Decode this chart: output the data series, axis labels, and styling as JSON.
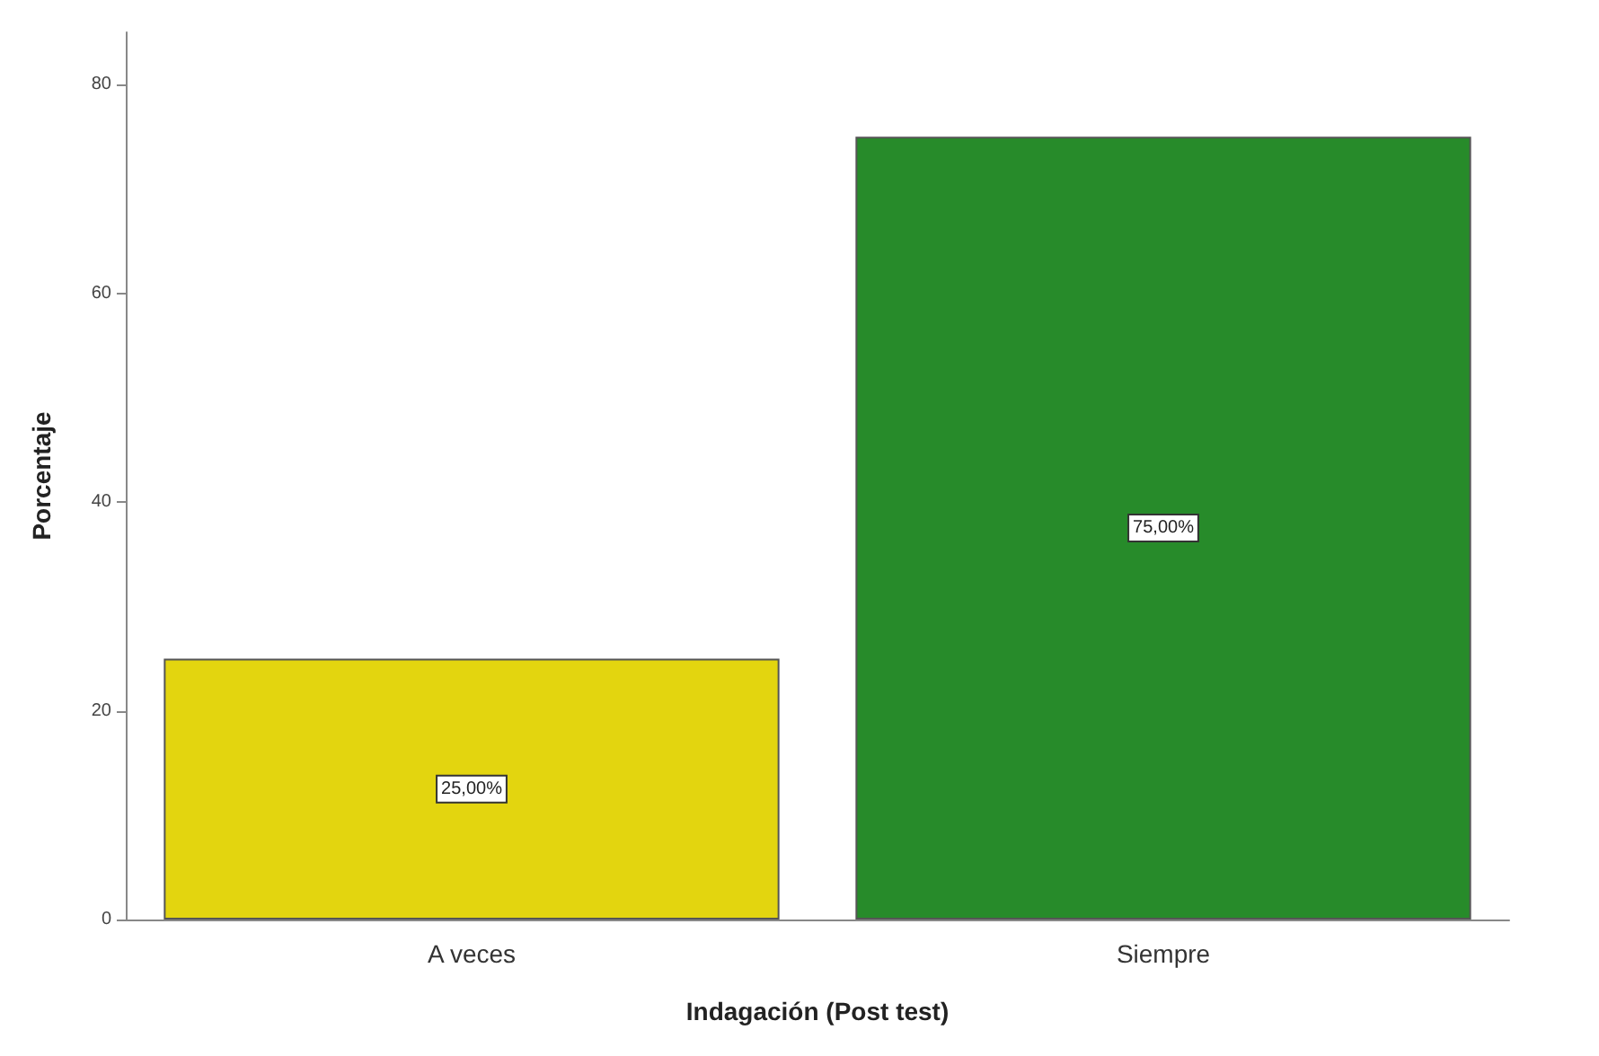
{
  "chart_data": {
    "type": "bar",
    "xlabel": "Indagación (Post test)",
    "ylabel": "Porcentaje",
    "categories": [
      "A veces",
      "Siempre"
    ],
    "values": [
      25,
      75
    ],
    "colors": [
      "#e3d50f",
      "#278b2a"
    ],
    "value_labels": [
      "25,00%",
      "75,00%"
    ],
    "ylim": [
      0,
      85
    ],
    "yticks": [
      0,
      20,
      40,
      60,
      80
    ],
    "grid": false
  }
}
